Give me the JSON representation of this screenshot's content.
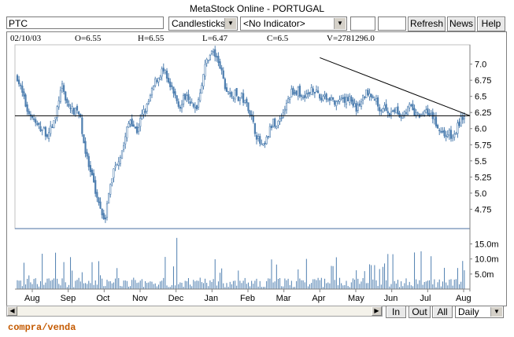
{
  "window": {
    "title": "MetaStock Online - PORTUGAL"
  },
  "toolbar": {
    "symbol": "PTC",
    "chart_style": "Candlesticks",
    "indicator": "<No Indicator>",
    "refresh_label": "Refresh",
    "news_label": "News",
    "help_label": "Help"
  },
  "info": {
    "date": "02/10/03",
    "open": "O=6.55",
    "high": "H=6.55",
    "low": "L=6.47",
    "close": "C=6.5",
    "volume": "V=2781296.0"
  },
  "bottom": {
    "in_label": "In",
    "out_label": "Out",
    "all_label": "All",
    "period": "Daily"
  },
  "footer": {
    "note": "compra/venda"
  },
  "chart_data": {
    "type": "candlestick",
    "x_labels": [
      "Aug",
      "Sep",
      "Oct",
      "Nov",
      "Dec",
      "Jan",
      "Feb",
      "Mar",
      "Apr",
      "May",
      "Jun",
      "Jul",
      "Aug"
    ],
    "price_axis": {
      "ticks": [
        4.75,
        5.0,
        5.25,
        5.5,
        5.75,
        6.0,
        6.25,
        6.5,
        6.75,
        7.0
      ],
      "labels": [
        "4.75",
        "5.0",
        "5.25",
        "5.5",
        "5.75",
        "6.0",
        "6.25",
        "6.5",
        "6.75",
        "7.0"
      ],
      "ylim": [
        4.45,
        7.3
      ]
    },
    "volume_axis": {
      "ticks": [
        5.0,
        10.0,
        15.0
      ],
      "labels": [
        "5.0m",
        "10.0m",
        "15.0m"
      ],
      "ylim": [
        0,
        18
      ]
    },
    "close_keypoints": [
      [
        0,
        6.8
      ],
      [
        6,
        6.55
      ],
      [
        12,
        6.3
      ],
      [
        18,
        6.2
      ],
      [
        24,
        6.05
      ],
      [
        30,
        6.0
      ],
      [
        35,
        5.95
      ],
      [
        38,
        5.9
      ],
      [
        42,
        6.0
      ],
      [
        48,
        6.15
      ],
      [
        52,
        6.45
      ],
      [
        56,
        6.65
      ],
      [
        60,
        6.5
      ],
      [
        64,
        6.35
      ],
      [
        68,
        6.3
      ],
      [
        72,
        6.25
      ],
      [
        76,
        6.3
      ],
      [
        80,
        6.1
      ],
      [
        84,
        5.75
      ],
      [
        88,
        5.5
      ],
      [
        92,
        5.3
      ],
      [
        96,
        5.15
      ],
      [
        100,
        4.95
      ],
      [
        104,
        4.8
      ],
      [
        108,
        4.65
      ],
      [
        110,
        4.6
      ],
      [
        114,
        4.9
      ],
      [
        118,
        5.2
      ],
      [
        122,
        5.4
      ],
      [
        126,
        5.5
      ],
      [
        130,
        5.6
      ],
      [
        134,
        5.75
      ],
      [
        138,
        6.0
      ],
      [
        142,
        6.15
      ],
      [
        146,
        6.05
      ],
      [
        150,
        5.95
      ],
      [
        154,
        6.1
      ],
      [
        158,
        6.25
      ],
      [
        162,
        6.3
      ],
      [
        166,
        6.45
      ],
      [
        170,
        6.6
      ],
      [
        174,
        6.75
      ],
      [
        178,
        6.8
      ],
      [
        182,
        6.9
      ],
      [
        186,
        6.85
      ],
      [
        190,
        6.7
      ],
      [
        194,
        6.6
      ],
      [
        198,
        6.5
      ],
      [
        202,
        6.4
      ],
      [
        206,
        6.35
      ],
      [
        210,
        6.5
      ],
      [
        214,
        6.55
      ],
      [
        218,
        6.4
      ],
      [
        222,
        6.3
      ],
      [
        226,
        6.35
      ],
      [
        230,
        6.6
      ],
      [
        234,
        6.85
      ],
      [
        238,
        7.05
      ],
      [
        242,
        7.15
      ],
      [
        246,
        7.2
      ],
      [
        250,
        7.1
      ],
      [
        254,
        7.0
      ],
      [
        258,
        6.8
      ],
      [
        262,
        6.6
      ],
      [
        266,
        6.55
      ],
      [
        270,
        6.5
      ],
      [
        274,
        6.55
      ],
      [
        278,
        6.45
      ],
      [
        282,
        6.5
      ],
      [
        286,
        6.4
      ],
      [
        290,
        6.35
      ],
      [
        294,
        6.2
      ],
      [
        298,
        6.0
      ],
      [
        302,
        5.85
      ],
      [
        306,
        5.75
      ],
      [
        310,
        5.7
      ],
      [
        314,
        5.85
      ],
      [
        318,
        6.0
      ],
      [
        322,
        6.1
      ],
      [
        326,
        6.05
      ],
      [
        330,
        6.15
      ],
      [
        334,
        6.25
      ],
      [
        338,
        6.35
      ],
      [
        342,
        6.5
      ],
      [
        346,
        6.6
      ],
      [
        350,
        6.55
      ],
      [
        354,
        6.6
      ],
      [
        358,
        6.45
      ],
      [
        362,
        6.55
      ],
      [
        366,
        6.5
      ],
      [
        370,
        6.65
      ],
      [
        374,
        6.6
      ],
      [
        378,
        6.5
      ],
      [
        382,
        6.45
      ],
      [
        386,
        6.55
      ],
      [
        390,
        6.45
      ],
      [
        394,
        6.5
      ],
      [
        398,
        6.4
      ],
      [
        402,
        6.35
      ],
      [
        406,
        6.45
      ],
      [
        410,
        6.4
      ],
      [
        414,
        6.45
      ],
      [
        418,
        6.5
      ],
      [
        422,
        6.4
      ],
      [
        426,
        6.3
      ],
      [
        430,
        6.35
      ],
      [
        434,
        6.45
      ],
      [
        438,
        6.55
      ],
      [
        442,
        6.6
      ],
      [
        446,
        6.5
      ],
      [
        450,
        6.45
      ],
      [
        454,
        6.35
      ],
      [
        458,
        6.3
      ],
      [
        462,
        6.35
      ],
      [
        466,
        6.25
      ],
      [
        470,
        6.2
      ],
      [
        474,
        6.3
      ],
      [
        478,
        6.25
      ],
      [
        482,
        6.2
      ],
      [
        486,
        6.25
      ],
      [
        490,
        6.3
      ],
      [
        494,
        6.35
      ],
      [
        498,
        6.25
      ],
      [
        502,
        6.2
      ],
      [
        506,
        6.2
      ],
      [
        510,
        6.25
      ],
      [
        514,
        6.3
      ],
      [
        518,
        6.25
      ],
      [
        522,
        6.2
      ],
      [
        526,
        6.1
      ],
      [
        530,
        6.0
      ],
      [
        534,
        5.95
      ],
      [
        538,
        5.9
      ],
      [
        542,
        5.95
      ],
      [
        546,
        5.85
      ],
      [
        550,
        5.9
      ],
      [
        554,
        6.05
      ],
      [
        558,
        6.15
      ],
      [
        562,
        6.2
      ]
    ],
    "horizontal_line": 6.2,
    "trend_line": {
      "from": [
        7.1,
        "Apr"
      ],
      "to": [
        6.2,
        "Aug"
      ]
    }
  }
}
